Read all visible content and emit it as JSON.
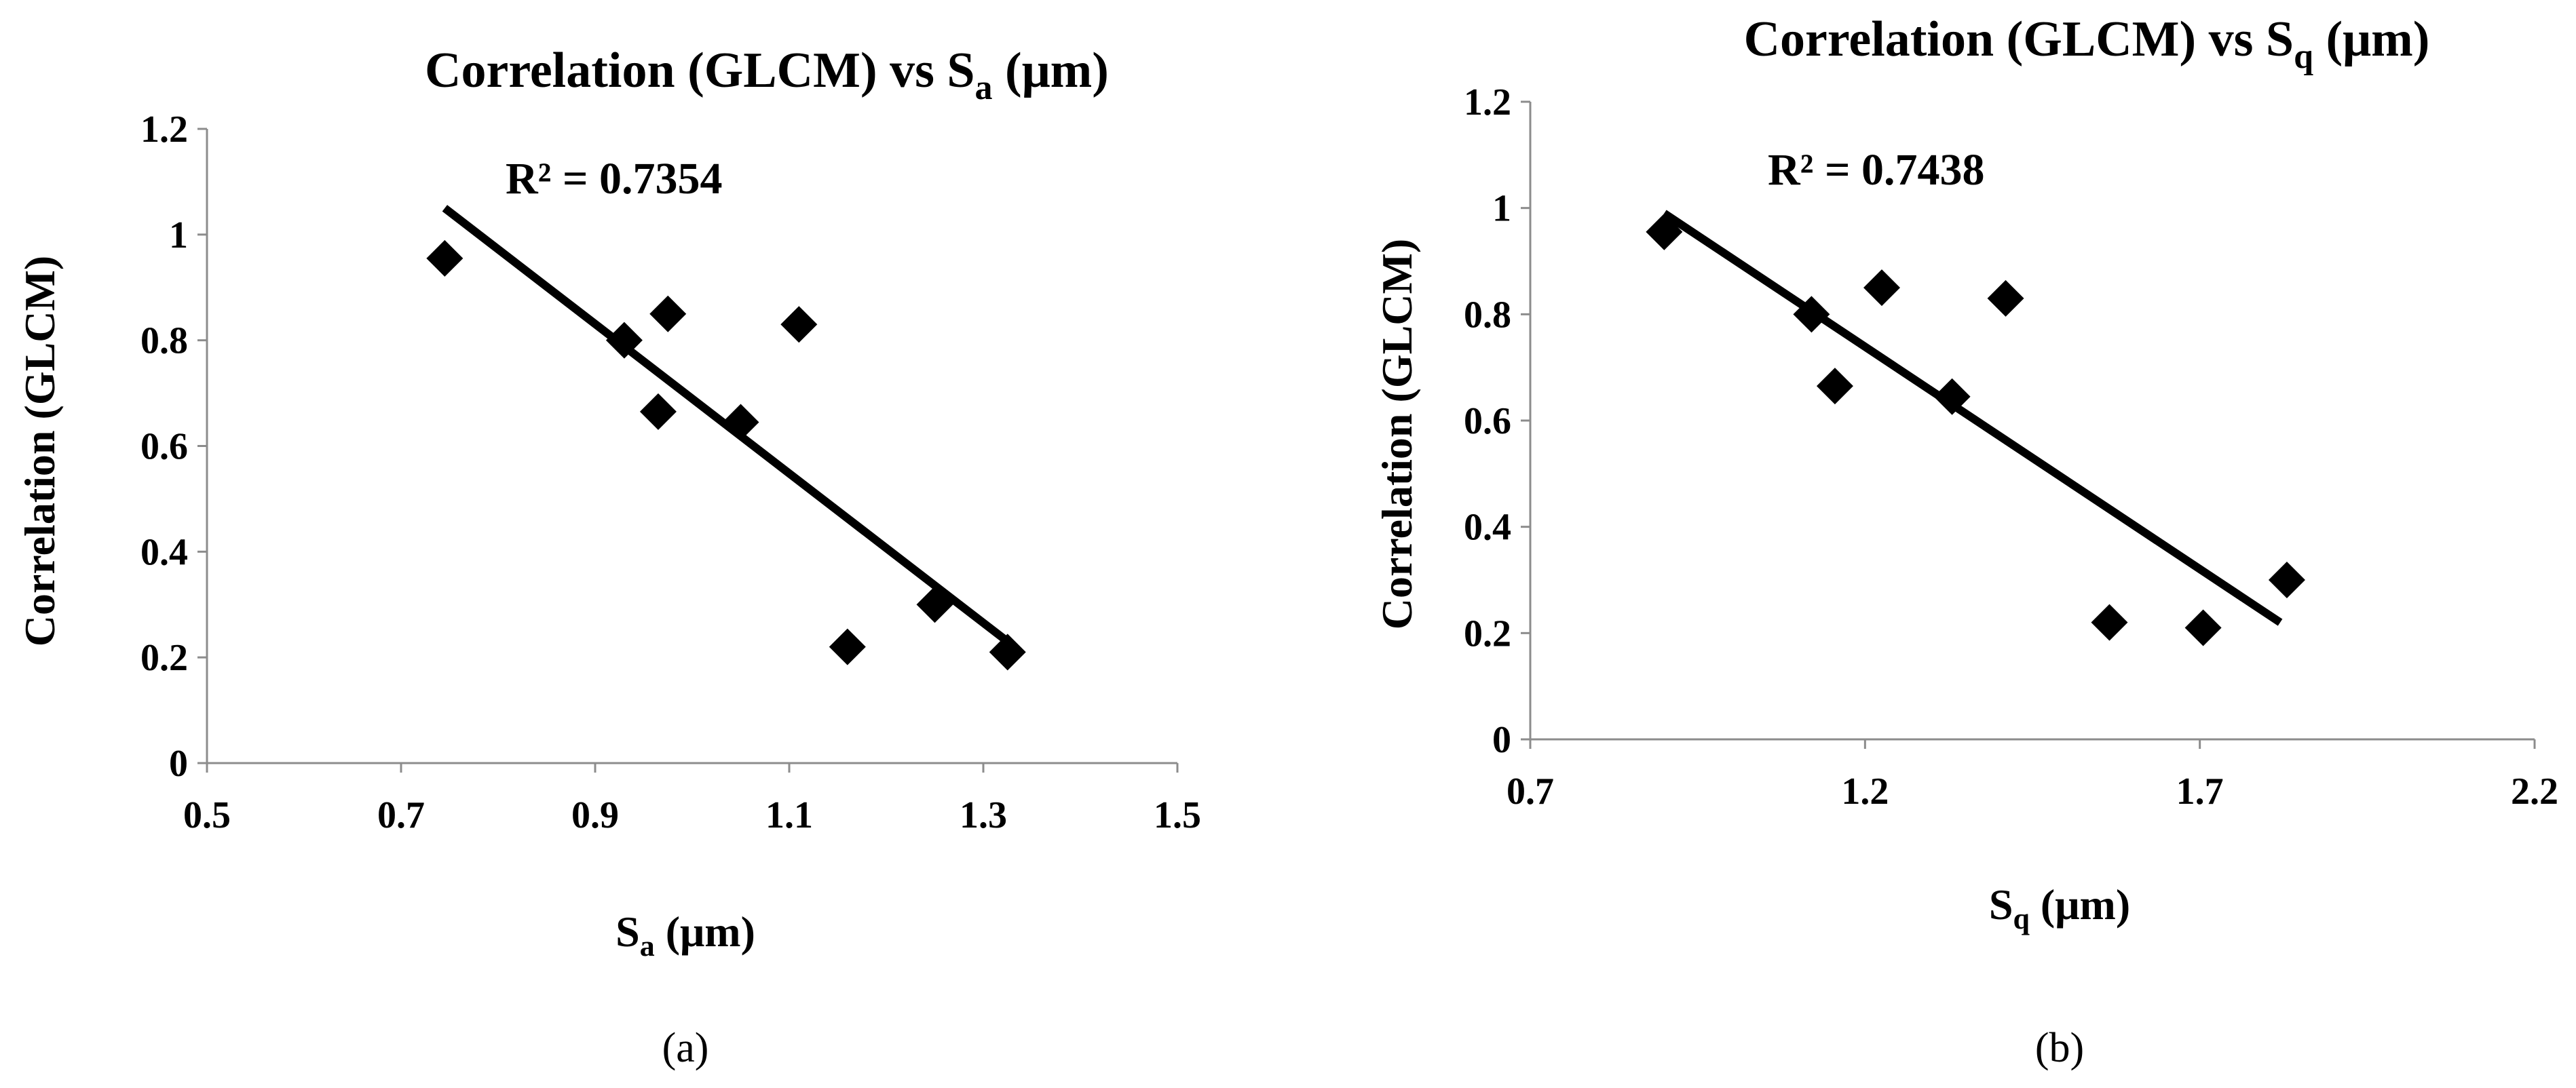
{
  "chart_data": [
    {
      "type": "scatter",
      "panel_label": "(a)",
      "title": {
        "main": "Correlation (GLCM) vs S",
        "sub": "a",
        "unit": " (μm)"
      },
      "xlabel": {
        "main": "S",
        "sub": "a",
        "unit": " (μm)"
      },
      "ylabel": "Correlation (GLCM)",
      "xlim": [
        0.5,
        1.5
      ],
      "ylim": [
        0,
        1.2
      ],
      "xticks": [
        "0.5",
        "0.7",
        "0.9",
        "1.1",
        "1.3",
        "1.5"
      ],
      "yticks": [
        "0",
        "0.2",
        "0.4",
        "0.6",
        "0.8",
        "1",
        "1.2"
      ],
      "points": [
        {
          "x": 0.745,
          "y": 0.955
        },
        {
          "x": 0.93,
          "y": 0.8
        },
        {
          "x": 0.975,
          "y": 0.85
        },
        {
          "x": 0.965,
          "y": 0.665
        },
        {
          "x": 1.05,
          "y": 0.645
        },
        {
          "x": 1.11,
          "y": 0.83
        },
        {
          "x": 1.16,
          "y": 0.22
        },
        {
          "x": 1.25,
          "y": 0.3
        },
        {
          "x": 1.325,
          "y": 0.21
        }
      ],
      "trendline": {
        "type": "linear",
        "start": {
          "x": 0.745,
          "y": 1.05
        },
        "end": {
          "x": 1.325,
          "y": 0.23
        },
        "r_squared_label": "R² = 0.7354"
      },
      "grid": false,
      "legend": "none"
    },
    {
      "type": "scatter",
      "panel_label": "(b)",
      "title": {
        "main": "Correlation (GLCM) vs S",
        "sub": "q",
        "unit": " (μm)"
      },
      "xlabel": {
        "main": "S",
        "sub": "q",
        "unit": " (μm)"
      },
      "ylabel": "Correlation (GLCM)",
      "xlim": [
        0.7,
        2.2
      ],
      "ylim": [
        0,
        1.2
      ],
      "xticks": [
        "0.7",
        "1.2",
        "1.7",
        "2.2"
      ],
      "yticks": [
        "0",
        "0.2",
        "0.4",
        "0.6",
        "0.8",
        "1",
        "1.2"
      ],
      "points": [
        {
          "x": 0.9,
          "y": 0.955
        },
        {
          "x": 1.12,
          "y": 0.8
        },
        {
          "x": 1.225,
          "y": 0.85
        },
        {
          "x": 1.155,
          "y": 0.665
        },
        {
          "x": 1.33,
          "y": 0.645
        },
        {
          "x": 1.41,
          "y": 0.83
        },
        {
          "x": 1.565,
          "y": 0.22
        },
        {
          "x": 1.83,
          "y": 0.3
        },
        {
          "x": 1.705,
          "y": 0.21
        }
      ],
      "trendline": {
        "type": "linear",
        "start": {
          "x": 0.9,
          "y": 0.99
        },
        "end": {
          "x": 1.82,
          "y": 0.22
        },
        "r_squared_label": "R² = 0.7438"
      },
      "grid": false,
      "legend": "none"
    }
  ]
}
